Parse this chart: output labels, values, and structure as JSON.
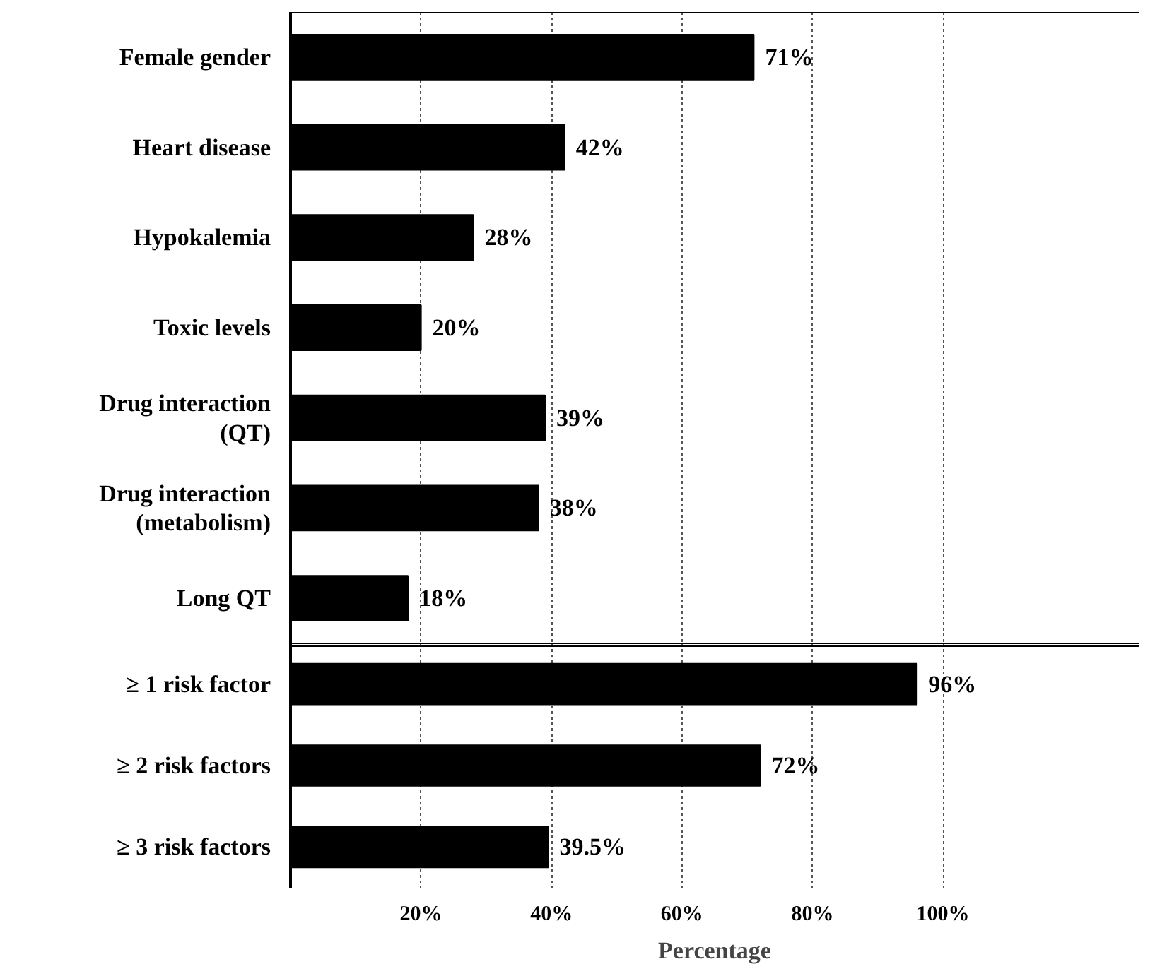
{
  "chart_data": [
    {
      "type": "bar",
      "orientation": "horizontal",
      "categories": [
        "Female gender",
        "Heart disease",
        "Hypokalemia",
        "Toxic levels",
        "Drug interaction\n(QT)",
        "Drug interaction\n(metabolism)",
        "Long QT"
      ],
      "values": [
        71,
        42,
        28,
        20,
        39,
        38,
        18
      ],
      "value_labels": [
        "71%",
        "42%",
        "28%",
        "20%",
        "39%",
        "38%",
        "18%"
      ],
      "color": "#000000",
      "xlim": [
        0,
        130
      ],
      "xticks": [
        20,
        40,
        60,
        80,
        100
      ],
      "grid": "x",
      "tick_labels": "y"
    },
    {
      "type": "bar",
      "orientation": "horizontal",
      "categories": [
        "≥ 1 risk factor",
        "≥ 2 risk factors",
        "≥ 3 risk factors"
      ],
      "values": [
        96,
        72,
        39.5
      ],
      "value_labels": [
        "96%",
        "72%",
        "39.5%"
      ],
      "color": "#000000",
      "xlabel": "Percentage",
      "xlim": [
        0,
        130
      ],
      "xticks": [
        {
          "value": 20,
          "label": "20%"
        },
        {
          "value": 40,
          "label": "40%"
        },
        {
          "value": 60,
          "label": "60%"
        },
        {
          "value": 80,
          "label": "80%"
        },
        {
          "value": 100,
          "label": "100%"
        }
      ],
      "grid": "x"
    }
  ]
}
